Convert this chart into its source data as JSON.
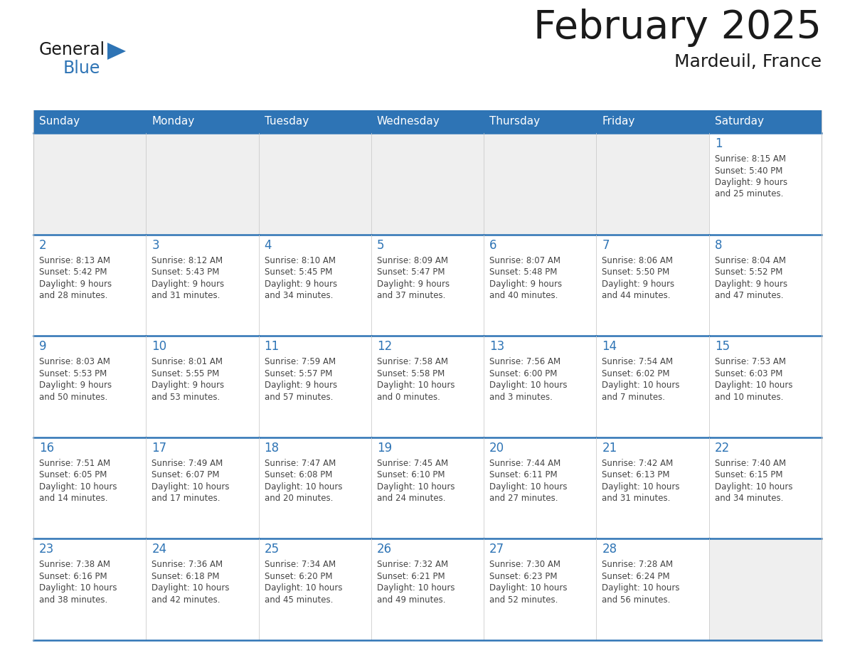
{
  "title": "February 2025",
  "subtitle": "Mardeuil, France",
  "header_color": "#2E74B5",
  "header_text_color": "#FFFFFF",
  "cell_bg_empty": "#EFEFEF",
  "cell_bg_filled": "#FFFFFF",
  "grid_line_color": "#2E74B5",
  "day_number_color": "#2E74B5",
  "text_color": "#444444",
  "days_of_week": [
    "Sunday",
    "Monday",
    "Tuesday",
    "Wednesday",
    "Thursday",
    "Friday",
    "Saturday"
  ],
  "calendar_data": [
    [
      null,
      null,
      null,
      null,
      null,
      null,
      {
        "day": 1,
        "sunrise": "8:15 AM",
        "sunset": "5:40 PM",
        "daylight_hours": 9,
        "daylight_minutes": 25
      }
    ],
    [
      {
        "day": 2,
        "sunrise": "8:13 AM",
        "sunset": "5:42 PM",
        "daylight_hours": 9,
        "daylight_minutes": 28
      },
      {
        "day": 3,
        "sunrise": "8:12 AM",
        "sunset": "5:43 PM",
        "daylight_hours": 9,
        "daylight_minutes": 31
      },
      {
        "day": 4,
        "sunrise": "8:10 AM",
        "sunset": "5:45 PM",
        "daylight_hours": 9,
        "daylight_minutes": 34
      },
      {
        "day": 5,
        "sunrise": "8:09 AM",
        "sunset": "5:47 PM",
        "daylight_hours": 9,
        "daylight_minutes": 37
      },
      {
        "day": 6,
        "sunrise": "8:07 AM",
        "sunset": "5:48 PM",
        "daylight_hours": 9,
        "daylight_minutes": 40
      },
      {
        "day": 7,
        "sunrise": "8:06 AM",
        "sunset": "5:50 PM",
        "daylight_hours": 9,
        "daylight_minutes": 44
      },
      {
        "day": 8,
        "sunrise": "8:04 AM",
        "sunset": "5:52 PM",
        "daylight_hours": 9,
        "daylight_minutes": 47
      }
    ],
    [
      {
        "day": 9,
        "sunrise": "8:03 AM",
        "sunset": "5:53 PM",
        "daylight_hours": 9,
        "daylight_minutes": 50
      },
      {
        "day": 10,
        "sunrise": "8:01 AM",
        "sunset": "5:55 PM",
        "daylight_hours": 9,
        "daylight_minutes": 53
      },
      {
        "day": 11,
        "sunrise": "7:59 AM",
        "sunset": "5:57 PM",
        "daylight_hours": 9,
        "daylight_minutes": 57
      },
      {
        "day": 12,
        "sunrise": "7:58 AM",
        "sunset": "5:58 PM",
        "daylight_hours": 10,
        "daylight_minutes": 0
      },
      {
        "day": 13,
        "sunrise": "7:56 AM",
        "sunset": "6:00 PM",
        "daylight_hours": 10,
        "daylight_minutes": 3
      },
      {
        "day": 14,
        "sunrise": "7:54 AM",
        "sunset": "6:02 PM",
        "daylight_hours": 10,
        "daylight_minutes": 7
      },
      {
        "day": 15,
        "sunrise": "7:53 AM",
        "sunset": "6:03 PM",
        "daylight_hours": 10,
        "daylight_minutes": 10
      }
    ],
    [
      {
        "day": 16,
        "sunrise": "7:51 AM",
        "sunset": "6:05 PM",
        "daylight_hours": 10,
        "daylight_minutes": 14
      },
      {
        "day": 17,
        "sunrise": "7:49 AM",
        "sunset": "6:07 PM",
        "daylight_hours": 10,
        "daylight_minutes": 17
      },
      {
        "day": 18,
        "sunrise": "7:47 AM",
        "sunset": "6:08 PM",
        "daylight_hours": 10,
        "daylight_minutes": 20
      },
      {
        "day": 19,
        "sunrise": "7:45 AM",
        "sunset": "6:10 PM",
        "daylight_hours": 10,
        "daylight_minutes": 24
      },
      {
        "day": 20,
        "sunrise": "7:44 AM",
        "sunset": "6:11 PM",
        "daylight_hours": 10,
        "daylight_minutes": 27
      },
      {
        "day": 21,
        "sunrise": "7:42 AM",
        "sunset": "6:13 PM",
        "daylight_hours": 10,
        "daylight_minutes": 31
      },
      {
        "day": 22,
        "sunrise": "7:40 AM",
        "sunset": "6:15 PM",
        "daylight_hours": 10,
        "daylight_minutes": 34
      }
    ],
    [
      {
        "day": 23,
        "sunrise": "7:38 AM",
        "sunset": "6:16 PM",
        "daylight_hours": 10,
        "daylight_minutes": 38
      },
      {
        "day": 24,
        "sunrise": "7:36 AM",
        "sunset": "6:18 PM",
        "daylight_hours": 10,
        "daylight_minutes": 42
      },
      {
        "day": 25,
        "sunrise": "7:34 AM",
        "sunset": "6:20 PM",
        "daylight_hours": 10,
        "daylight_minutes": 45
      },
      {
        "day": 26,
        "sunrise": "7:32 AM",
        "sunset": "6:21 PM",
        "daylight_hours": 10,
        "daylight_minutes": 49
      },
      {
        "day": 27,
        "sunrise": "7:30 AM",
        "sunset": "6:23 PM",
        "daylight_hours": 10,
        "daylight_minutes": 52
      },
      {
        "day": 28,
        "sunrise": "7:28 AM",
        "sunset": "6:24 PM",
        "daylight_hours": 10,
        "daylight_minutes": 56
      },
      null
    ]
  ],
  "logo_text_general": "General",
  "logo_text_blue": "Blue",
  "logo_triangle_color": "#2E74B5",
  "logo_general_color": "#1a1a1a"
}
